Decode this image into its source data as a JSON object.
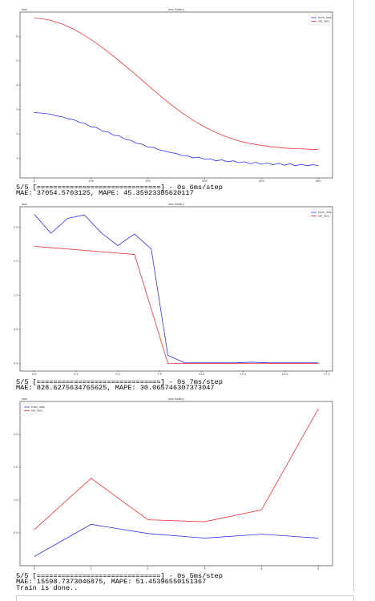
{
  "chart_data": [
    {
      "type": "line",
      "title": "loss history",
      "ylabel": "loss",
      "legend": "upper right",
      "x": [
        0,
        10,
        20,
        30,
        40,
        50,
        60,
        70,
        80,
        90,
        100,
        110,
        120,
        130,
        140,
        150,
        160,
        170,
        180,
        190,
        200,
        210,
        220,
        230,
        240,
        250,
        260,
        270,
        280,
        290,
        300,
        310,
        320,
        330,
        340,
        350,
        360,
        370,
        380,
        390,
        400,
        410,
        420,
        430,
        440,
        450,
        460,
        470,
        480,
        490,
        500
      ],
      "series": [
        {
          "name": "train_loss",
          "color": "#3333ee",
          "values": [
            2.88,
            2.86,
            2.84,
            2.8,
            2.74,
            2.7,
            2.62,
            2.58,
            2.48,
            2.42,
            2.3,
            2.26,
            2.12,
            2.08,
            1.95,
            1.92,
            1.78,
            1.74,
            1.62,
            1.58,
            1.46,
            1.45,
            1.35,
            1.3,
            1.24,
            1.2,
            1.12,
            1.1,
            1.02,
            1.05,
            0.96,
            0.98,
            0.9,
            0.94,
            0.86,
            0.9,
            0.82,
            0.86,
            0.78,
            0.84,
            0.76,
            0.82,
            0.74,
            0.8,
            0.72,
            0.78,
            0.7,
            0.76,
            0.7,
            0.74,
            0.7
          ]
        },
        {
          "name": "val_loss",
          "color": "#ee3333",
          "values": [
            6.75,
            6.73,
            6.7,
            6.65,
            6.58,
            6.5,
            6.4,
            6.29,
            6.16,
            6.02,
            5.87,
            5.71,
            5.54,
            5.36,
            5.18,
            4.99,
            4.8,
            4.6,
            4.4,
            4.2,
            4.0,
            3.8,
            3.6,
            3.41,
            3.22,
            3.04,
            2.87,
            2.71,
            2.56,
            2.42,
            2.29,
            2.17,
            2.06,
            1.96,
            1.87,
            1.79,
            1.72,
            1.66,
            1.61,
            1.57,
            1.53,
            1.5,
            1.47,
            1.45,
            1.43,
            1.41,
            1.4,
            1.39,
            1.38,
            1.37,
            1.36
          ]
        }
      ],
      "xlim": [
        -25,
        525
      ],
      "xticks": [
        0,
        100,
        200,
        300,
        400,
        500
      ],
      "ylim": [
        0.2,
        7.0
      ],
      "yticks": [
        1,
        2,
        3,
        4,
        5,
        6
      ]
    },
    {
      "type": "line",
      "title": "loss history",
      "ylabel": "loss",
      "legend": "upper right",
      "x": [
        0,
        1,
        2,
        3,
        4,
        5,
        6,
        7,
        8,
        9,
        10,
        11,
        12,
        13,
        14,
        15,
        16,
        17
      ],
      "series": [
        {
          "name": "train_loss",
          "color": "#3333ee",
          "values": [
            2.19,
            1.91,
            2.13,
            2.18,
            1.92,
            1.73,
            1.9,
            1.68,
            0.12,
            0.01,
            0.01,
            0.01,
            0.01,
            0.02,
            0.01,
            0.01,
            0.01,
            0.01
          ]
        },
        {
          "name": "val_loss",
          "color": "#ee3333",
          "values": [
            1.72,
            1.7,
            1.68,
            1.66,
            1.64,
            1.62,
            1.6,
            0.8,
            0.0,
            0.0,
            0.0,
            0.0,
            0.0,
            0.0,
            0.0,
            0.0,
            0.0,
            0.0
          ]
        }
      ],
      "xlim": [
        -0.85,
        17.85
      ],
      "xticks": [
        {
          "value": 0,
          "label": "0.0"
        },
        2.5,
        {
          "value": 5,
          "label": "5.0"
        },
        7.5,
        {
          "value": 10,
          "label": "10.0"
        },
        12.5,
        {
          "value": 15,
          "label": "15.0"
        },
        17.5
      ],
      "ylim": [
        -0.11,
        2.3
      ],
      "yticks": [
        {
          "value": 0,
          "label": "0.0"
        },
        0.5,
        {
          "value": 1,
          "label": "1.0"
        },
        1.5,
        {
          "value": 2,
          "label": "2.0"
        }
      ]
    },
    {
      "type": "line",
      "title": "loss history",
      "ylabel": "loss",
      "legend": "upper left",
      "x": [
        0,
        1,
        2,
        3,
        4,
        5
      ],
      "series": [
        {
          "name": "train_loss",
          "color": "#3333ee",
          "values": [
            0.14,
            0.63,
            0.49,
            0.42,
            0.48,
            0.42
          ]
        },
        {
          "name": "val_loss",
          "color": "#ee3333",
          "values": [
            0.55,
            1.33,
            0.7,
            0.67,
            0.85,
            2.39
          ]
        }
      ],
      "xlim": [
        -0.25,
        5.25
      ],
      "xticks": [
        0,
        1,
        2,
        3,
        4,
        5
      ],
      "ylim": [
        0.0,
        2.5
      ],
      "yticks": [
        0.5,
        {
          "value": 1,
          "label": "1.0"
        },
        1.5,
        {
          "value": 2,
          "label": "2.0"
        }
      ]
    }
  ],
  "outputs": [
    {
      "progress": "5/5 [==============================] - 0s 6ms/step",
      "metrics": "MAE: 37054.5703125, MAPE: 45.35923385620117"
    },
    {
      "progress": "5/5 [==============================] - 0s 7ms/step",
      "metrics": "MAE: 828.6275634765625, MAPE: 30.065746307373047"
    },
    {
      "progress": "5/5 [==============================] - 0s 5ms/step",
      "metrics": "MAE: 15598.7373046875, MAPE: 51.45396550151367"
    }
  ],
  "final": "Train is done.."
}
